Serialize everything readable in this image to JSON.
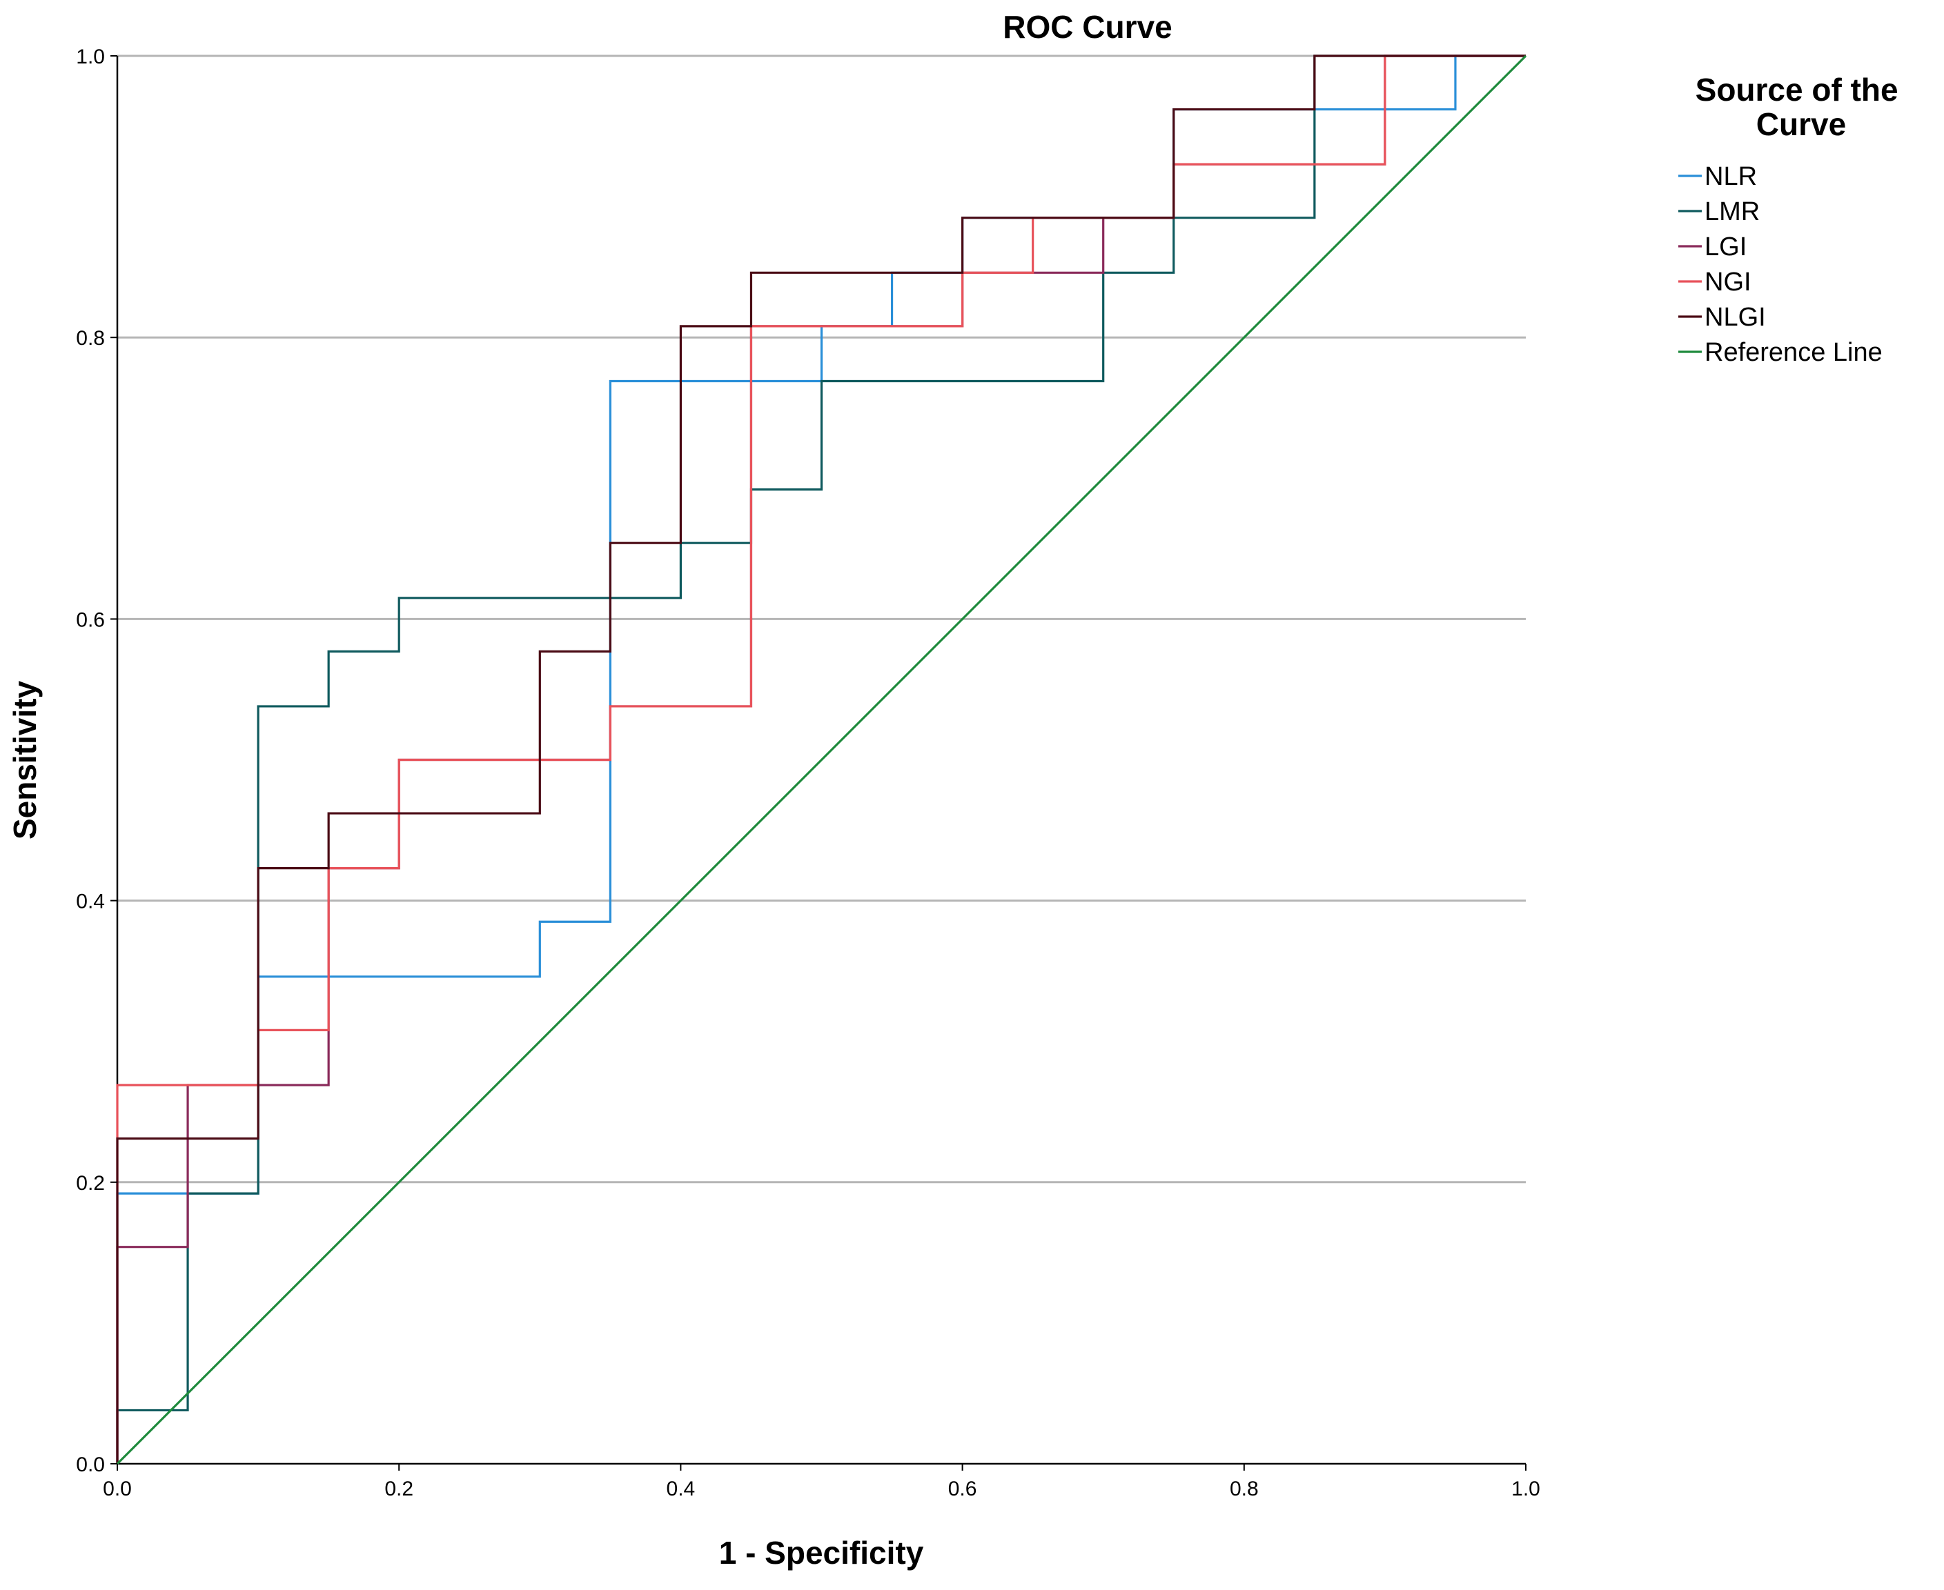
{
  "chart_data": {
    "type": "line",
    "title": "ROC Curve",
    "xlabel": "1 - Specificity",
    "ylabel": "Sensitivity",
    "xlim": [
      0.0,
      1.0
    ],
    "ylim": [
      0.0,
      1.0
    ],
    "xticks": [
      0.0,
      0.2,
      0.4,
      0.6,
      0.8,
      1.0
    ],
    "yticks": [
      0.0,
      0.2,
      0.4,
      0.6,
      0.8,
      1.0
    ],
    "xtick_labels": [
      "0.0",
      "0.2",
      "0.4",
      "0.6",
      "0.8",
      "1.0"
    ],
    "ytick_labels": [
      "0.0",
      "0.2",
      "0.4",
      "0.6",
      "0.8",
      "1.0"
    ],
    "grid": "horizontal",
    "legend": {
      "title": "Source of the Curve",
      "position": "right"
    },
    "series": [
      {
        "name": "NLR",
        "color": "#2a8fd8",
        "points": [
          [
            0,
            0
          ],
          [
            0,
            0.192
          ],
          [
            0.05,
            0.192
          ],
          [
            0.05,
            0.192
          ],
          [
            0.1,
            0.192
          ],
          [
            0.1,
            0.346
          ],
          [
            0.3,
            0.346
          ],
          [
            0.3,
            0.385
          ],
          [
            0.35,
            0.385
          ],
          [
            0.35,
            0.769
          ],
          [
            0.5,
            0.769
          ],
          [
            0.5,
            0.808
          ],
          [
            0.55,
            0.808
          ],
          [
            0.55,
            0.846
          ],
          [
            0.6,
            0.846
          ],
          [
            0.6,
            0.885
          ],
          [
            0.75,
            0.885
          ],
          [
            0.75,
            0.962
          ],
          [
            0.95,
            0.962
          ],
          [
            0.95,
            1.0
          ],
          [
            1.0,
            1.0
          ]
        ]
      },
      {
        "name": "LMR",
        "color": "#0f5a5e",
        "points": [
          [
            0,
            0
          ],
          [
            0,
            0.038
          ],
          [
            0.05,
            0.038
          ],
          [
            0.05,
            0.192
          ],
          [
            0.1,
            0.192
          ],
          [
            0.1,
            0.538
          ],
          [
            0.15,
            0.538
          ],
          [
            0.15,
            0.577
          ],
          [
            0.2,
            0.577
          ],
          [
            0.2,
            0.615
          ],
          [
            0.4,
            0.615
          ],
          [
            0.4,
            0.654
          ],
          [
            0.45,
            0.654
          ],
          [
            0.45,
            0.692
          ],
          [
            0.5,
            0.692
          ],
          [
            0.5,
            0.769
          ],
          [
            0.7,
            0.769
          ],
          [
            0.7,
            0.846
          ],
          [
            0.75,
            0.846
          ],
          [
            0.75,
            0.885
          ],
          [
            0.85,
            0.885
          ],
          [
            0.85,
            1.0
          ],
          [
            1.0,
            1.0
          ]
        ]
      },
      {
        "name": "LGI",
        "color": "#8a2a5a",
        "points": [
          [
            0,
            0
          ],
          [
            0,
            0.154
          ],
          [
            0.05,
            0.154
          ],
          [
            0.05,
            0.269
          ],
          [
            0.15,
            0.269
          ],
          [
            0.15,
            0.423
          ],
          [
            0.2,
            0.423
          ],
          [
            0.2,
            0.5
          ],
          [
            0.35,
            0.5
          ],
          [
            0.35,
            0.538
          ],
          [
            0.45,
            0.538
          ],
          [
            0.45,
            0.808
          ],
          [
            0.6,
            0.808
          ],
          [
            0.6,
            0.846
          ],
          [
            0.65,
            0.846
          ],
          [
            0.65,
            0.846
          ],
          [
            0.7,
            0.846
          ],
          [
            0.7,
            0.885
          ],
          [
            0.75,
            0.885
          ],
          [
            0.75,
            0.923
          ],
          [
            0.9,
            0.923
          ],
          [
            0.9,
            1.0
          ],
          [
            1.0,
            1.0
          ]
        ]
      },
      {
        "name": "NGI",
        "color": "#e8525a",
        "points": [
          [
            0,
            0
          ],
          [
            0,
            0.269
          ],
          [
            0.1,
            0.269
          ],
          [
            0.1,
            0.308
          ],
          [
            0.15,
            0.308
          ],
          [
            0.15,
            0.423
          ],
          [
            0.2,
            0.423
          ],
          [
            0.2,
            0.5
          ],
          [
            0.35,
            0.5
          ],
          [
            0.35,
            0.538
          ],
          [
            0.45,
            0.538
          ],
          [
            0.45,
            0.808
          ],
          [
            0.6,
            0.808
          ],
          [
            0.6,
            0.846
          ],
          [
            0.65,
            0.846
          ],
          [
            0.65,
            0.885
          ],
          [
            0.7,
            0.885
          ],
          [
            0.75,
            0.885
          ],
          [
            0.75,
            0.923
          ],
          [
            0.9,
            0.923
          ],
          [
            0.9,
            1.0
          ],
          [
            1.0,
            1.0
          ]
        ]
      },
      {
        "name": "NLGI",
        "color": "#4a0a14",
        "points": [
          [
            0,
            0
          ],
          [
            0,
            0.231
          ],
          [
            0.1,
            0.231
          ],
          [
            0.1,
            0.423
          ],
          [
            0.15,
            0.423
          ],
          [
            0.15,
            0.462
          ],
          [
            0.3,
            0.462
          ],
          [
            0.3,
            0.577
          ],
          [
            0.35,
            0.577
          ],
          [
            0.35,
            0.654
          ],
          [
            0.4,
            0.654
          ],
          [
            0.4,
            0.808
          ],
          [
            0.45,
            0.808
          ],
          [
            0.45,
            0.846
          ],
          [
            0.6,
            0.846
          ],
          [
            0.6,
            0.885
          ],
          [
            0.75,
            0.885
          ],
          [
            0.75,
            0.962
          ],
          [
            0.85,
            0.962
          ],
          [
            0.85,
            1.0
          ],
          [
            1.0,
            1.0
          ]
        ]
      },
      {
        "name": "Reference Line",
        "color": "#1e8a3c",
        "points": [
          [
            0,
            0
          ],
          [
            1,
            1
          ]
        ]
      }
    ]
  }
}
